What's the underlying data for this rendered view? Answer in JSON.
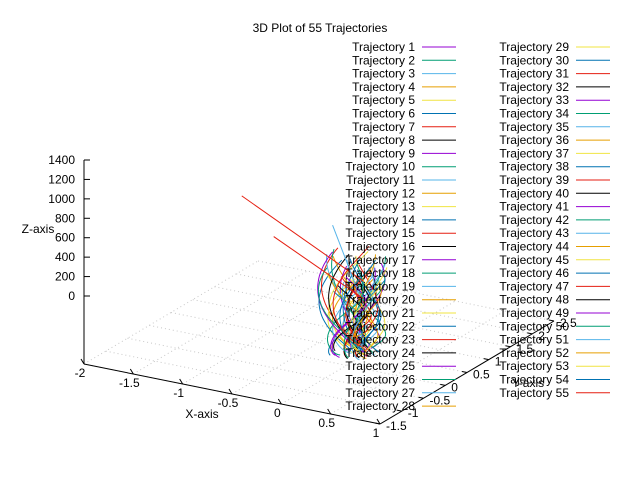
{
  "chart_data": {
    "type": "line",
    "title": "3D Plot of 55 Trajectories",
    "xlabel": "X-axis",
    "ylabel": "Y-axis",
    "zlabel": "Z-axis",
    "grid": true,
    "legend_position": "top-right",
    "xlim": [
      -2,
      1
    ],
    "ylim": [
      -1.5,
      2.5
    ],
    "zlim": [
      0,
      1400
    ],
    "x_ticks": [
      "-2",
      "-1.5",
      "-1",
      "-0.5",
      "0",
      "0.5",
      "1"
    ],
    "y_ticks": [
      "-1.5",
      "-1",
      "-0.5",
      "0",
      "0.5",
      "1",
      "1.5",
      "2",
      "2.5"
    ],
    "z_ticks": [
      "0",
      "200",
      "400",
      "600",
      "800",
      "1000",
      "1200",
      "1400"
    ],
    "palette": [
      "#9400d3",
      "#009e73",
      "#56b4e9",
      "#e69f00",
      "#f0e442",
      "#0072b2",
      "#e51e10",
      "#000000"
    ],
    "series": [
      {
        "name": "Trajectory 1"
      },
      {
        "name": "Trajectory 2"
      },
      {
        "name": "Trajectory 3"
      },
      {
        "name": "Trajectory 4"
      },
      {
        "name": "Trajectory 5"
      },
      {
        "name": "Trajectory 6"
      },
      {
        "name": "Trajectory 7"
      },
      {
        "name": "Trajectory 8"
      },
      {
        "name": "Trajectory 9"
      },
      {
        "name": "Trajectory 10"
      },
      {
        "name": "Trajectory 11"
      },
      {
        "name": "Trajectory 12"
      },
      {
        "name": "Trajectory 13"
      },
      {
        "name": "Trajectory 14"
      },
      {
        "name": "Trajectory 15"
      },
      {
        "name": "Trajectory 16"
      },
      {
        "name": "Trajectory 17"
      },
      {
        "name": "Trajectory 18"
      },
      {
        "name": "Trajectory 19"
      },
      {
        "name": "Trajectory 20"
      },
      {
        "name": "Trajectory 21"
      },
      {
        "name": "Trajectory 22"
      },
      {
        "name": "Trajectory 23"
      },
      {
        "name": "Trajectory 24"
      },
      {
        "name": "Trajectory 25"
      },
      {
        "name": "Trajectory 26"
      },
      {
        "name": "Trajectory 27"
      },
      {
        "name": "Trajectory 28"
      },
      {
        "name": "Trajectory 29"
      },
      {
        "name": "Trajectory 30"
      },
      {
        "name": "Trajectory 31"
      },
      {
        "name": "Trajectory 32"
      },
      {
        "name": "Trajectory 33"
      },
      {
        "name": "Trajectory 34"
      },
      {
        "name": "Trajectory 35"
      },
      {
        "name": "Trajectory 36"
      },
      {
        "name": "Trajectory 37"
      },
      {
        "name": "Trajectory 38"
      },
      {
        "name": "Trajectory 39"
      },
      {
        "name": "Trajectory 40"
      },
      {
        "name": "Trajectory 41"
      },
      {
        "name": "Trajectory 42"
      },
      {
        "name": "Trajectory 43"
      },
      {
        "name": "Trajectory 44"
      },
      {
        "name": "Trajectory 45"
      },
      {
        "name": "Trajectory 46"
      },
      {
        "name": "Trajectory 47"
      },
      {
        "name": "Trajectory 48"
      },
      {
        "name": "Trajectory 49"
      },
      {
        "name": "Trajectory 50"
      },
      {
        "name": "Trajectory 51"
      },
      {
        "name": "Trajectory 52"
      },
      {
        "name": "Trajectory 53"
      },
      {
        "name": "Trajectory 54"
      },
      {
        "name": "Trajectory 55"
      }
    ]
  }
}
